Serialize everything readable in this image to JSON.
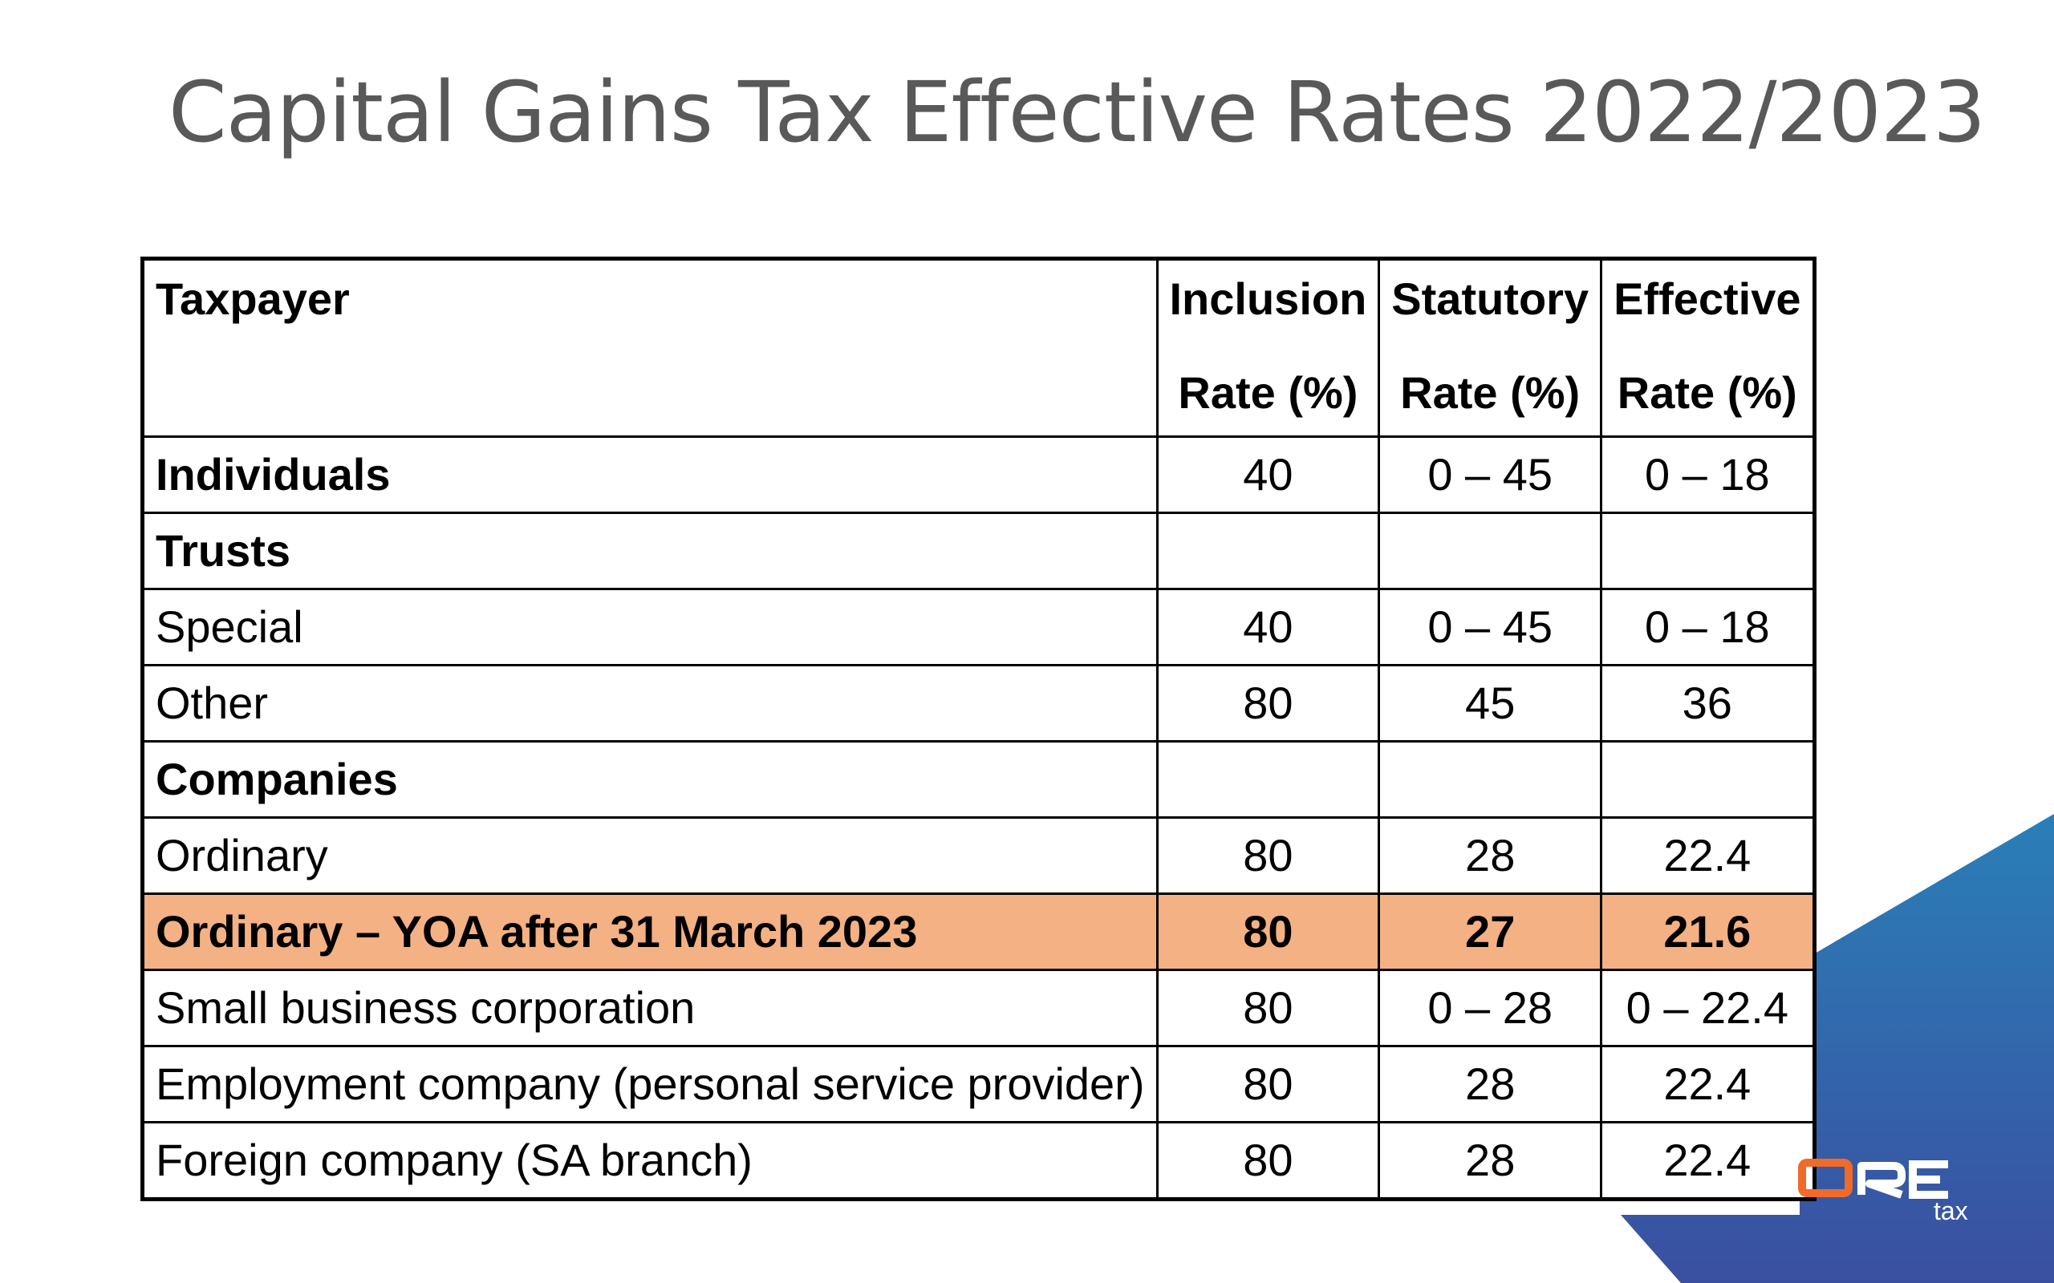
{
  "slide": {
    "title": "Capital Gains Tax Effective Rates 2022/2023",
    "brand_colors": {
      "accent_blue_top": "#2a7fb8",
      "accent_blue_bottom": "#3a4fa0",
      "highlight_row": "#f4b183",
      "logo_orange": "#f06a2a",
      "title_gray": "#595959"
    }
  },
  "table": {
    "headers": {
      "taxpayer": "Taxpayer",
      "inclusion_line1": "Inclusion",
      "inclusion_line2": "Rate (%)",
      "statutory_line1": "Statutory",
      "statutory_line2": "Rate (%)",
      "effective_line1": "Effective",
      "effective_line2": "Rate (%)"
    },
    "rows": [
      {
        "label": "Individuals",
        "inclusion": "40",
        "statutory": "0 – 45",
        "effective": "0 – 18",
        "style": "group"
      },
      {
        "label": "Trusts",
        "inclusion": "",
        "statutory": "",
        "effective": "",
        "style": "group"
      },
      {
        "label": "Special",
        "inclusion": "40",
        "statutory": "0 – 45",
        "effective": "0 – 18",
        "style": "normal"
      },
      {
        "label": "Other",
        "inclusion": "80",
        "statutory": "45",
        "effective": "36",
        "style": "normal"
      },
      {
        "label": "Companies",
        "inclusion": "",
        "statutory": "",
        "effective": "",
        "style": "group"
      },
      {
        "label": "Ordinary",
        "inclusion": "80",
        "statutory": "28",
        "effective": "22.4",
        "style": "normal"
      },
      {
        "label": "Ordinary – YOA after 31 March 2023",
        "inclusion": "80",
        "statutory": "27",
        "effective": "21.6",
        "style": "highlight"
      },
      {
        "label": "Small business corporation",
        "inclusion": "80",
        "statutory": "0 – 28",
        "effective": "0 – 22.4",
        "style": "normal"
      },
      {
        "label": "Employment company (personal service provider)",
        "inclusion": "80",
        "statutory": "28",
        "effective": "22.4",
        "style": "normal"
      },
      {
        "label": "Foreign company (SA branch)",
        "inclusion": "80",
        "statutory": "28",
        "effective": "22.4",
        "style": "normal"
      }
    ]
  },
  "logo": {
    "wordmark": "ORE",
    "subtext": "tax",
    "icon": "company-logo"
  }
}
